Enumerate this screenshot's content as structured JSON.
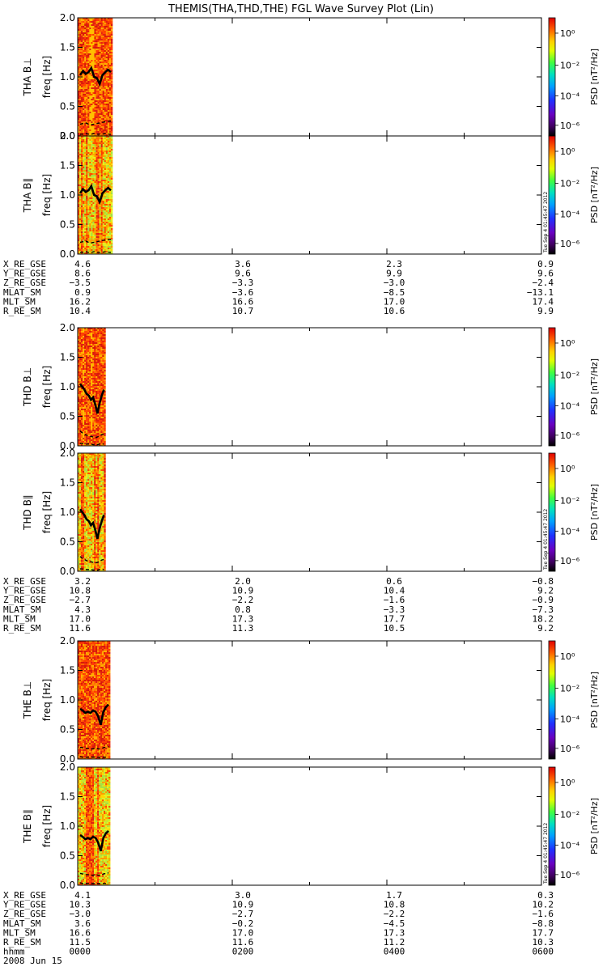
{
  "title": "THEMIS(THA,THD,THE) FGL Wave Survey Plot (Lin)",
  "stamp": "Tue Sep  4 01:45:47 2012",
  "colorbar": {
    "label": "PSD [nT²/Hz]",
    "ticks": [
      "10⁰",
      "10⁻²",
      "10⁻⁴",
      "10⁻⁶"
    ]
  },
  "yticks": [
    "2.0",
    "1.5",
    "1.0",
    "0.5",
    "0.0"
  ],
  "probes": [
    {
      "panels": [
        {
          "label": "THA B⊥",
          "unit": "freq [Hz]"
        },
        {
          "label": "THA B∥",
          "unit": "freq [Hz]"
        }
      ],
      "ephem": [
        {
          "name": "X_RE_GSE",
          "values": [
            "4.6",
            "3.6",
            "2.3",
            "0.9"
          ]
        },
        {
          "name": "Y_RE_GSE",
          "values": [
            "8.6",
            "9.6",
            "9.9",
            "9.6"
          ]
        },
        {
          "name": "Z_RE_GSE",
          "values": [
            "-3.5",
            "-3.3",
            "-3.0",
            "-2.4"
          ]
        },
        {
          "name": "MLAT_SM",
          "values": [
            "0.9",
            "-3.6",
            "-8.5",
            "-13.1"
          ]
        },
        {
          "name": "MLT_SM",
          "values": [
            "16.2",
            "16.6",
            "17.0",
            "17.4"
          ]
        },
        {
          "name": "R_RE_SM",
          "values": [
            "10.4",
            "10.7",
            "10.6",
            "9.9"
          ]
        }
      ]
    },
    {
      "panels": [
        {
          "label": "THD B⊥",
          "unit": "freq [Hz]"
        },
        {
          "label": "THD B∥",
          "unit": "freq [Hz]"
        }
      ],
      "ephem": [
        {
          "name": "X_RE_GSE",
          "values": [
            "3.2",
            "2.0",
            "0.6",
            "-0.8"
          ]
        },
        {
          "name": "Y_RE_GSE",
          "values": [
            "10.8",
            "10.9",
            "10.4",
            "9.2"
          ]
        },
        {
          "name": "Z_RE_GSE",
          "values": [
            "-2.7",
            "-2.2",
            "-1.6",
            "-0.9"
          ]
        },
        {
          "name": "MLAT_SM",
          "values": [
            "4.3",
            "0.8",
            "-3.3",
            "-7.3"
          ]
        },
        {
          "name": "MLT_SM",
          "values": [
            "17.0",
            "17.3",
            "17.7",
            "18.2"
          ]
        },
        {
          "name": "R_RE_SM",
          "values": [
            "11.6",
            "11.3",
            "10.5",
            "9.2"
          ]
        }
      ]
    },
    {
      "panels": [
        {
          "label": "THE B⊥",
          "unit": "freq [Hz]"
        },
        {
          "label": "THE B∥",
          "unit": "freq [Hz]"
        }
      ],
      "ephem": [
        {
          "name": "X_RE_GSE",
          "values": [
            "4.1",
            "3.0",
            "1.7",
            "0.3"
          ]
        },
        {
          "name": "Y_RE_GSE",
          "values": [
            "10.3",
            "10.9",
            "10.8",
            "10.2"
          ]
        },
        {
          "name": "Z_RE_GSE",
          "values": [
            "-3.0",
            "-2.7",
            "-2.2",
            "-1.6"
          ]
        },
        {
          "name": "MLAT_SM",
          "values": [
            "3.6",
            "-0.2",
            "-4.5",
            "-8.8"
          ]
        },
        {
          "name": "MLT_SM",
          "values": [
            "16.6",
            "17.0",
            "17.3",
            "17.7"
          ]
        },
        {
          "name": "R_RE_SM",
          "values": [
            "11.5",
            "11.6",
            "11.2",
            "10.3"
          ]
        },
        {
          "name": "hhmm",
          "values": [
            "0000",
            "0200",
            "0400",
            "0600"
          ]
        }
      ],
      "date": "2008 Jun 15"
    }
  ],
  "chart_data": {
    "type": "heatmap",
    "title": "THEMIS(THA,THD,THE) FGL Wave Survey Plot (Lin)",
    "x_axis": {
      "label": "hhmm",
      "range": [
        "0000",
        "0600"
      ],
      "ticks": [
        "0000",
        "0200",
        "0400",
        "0600"
      ]
    },
    "y_axis": {
      "label": "freq [Hz]",
      "range": [
        0.0,
        2.0
      ],
      "ticks": [
        0.0,
        0.5,
        1.0,
        1.5,
        2.0
      ]
    },
    "color_scale": {
      "label": "PSD [nT²/Hz]",
      "type": "log",
      "range": [
        1e-07,
        10
      ],
      "ticks": [
        1,
        0.01,
        0.0001,
        1e-06
      ]
    },
    "data_coverage_hours": {
      "THA": [
        0.0,
        0.45
      ],
      "THD": [
        0.0,
        0.36
      ],
      "THE": [
        0.0,
        0.42
      ]
    },
    "dominant_color": {
      "B_perp": "red",
      "B_par": "yellow-green/red"
    },
    "traces": {
      "THA": {
        "solid_freq_Hz": [
          1.03,
          1.1,
          1.05,
          1.08,
          1.15,
          1.0,
          0.98,
          0.88,
          1.03,
          1.08,
          1.12,
          1.08
        ],
        "dashed_upper_Hz": [
          0.2,
          0.21,
          0.22,
          0.2,
          0.19,
          0.2,
          0.21,
          0.22,
          0.23,
          0.24,
          0.25,
          0.25
        ],
        "dashed_lower_Hz": [
          0.03,
          0.03,
          0.04,
          0.03,
          0.03,
          0.04,
          0.03,
          0.03,
          0.03,
          0.04,
          0.03,
          0.03
        ]
      },
      "THD": {
        "solid_freq_Hz": [
          1.05,
          1.0,
          0.95,
          0.88,
          0.85,
          0.78,
          0.82,
          0.7,
          0.55,
          0.72,
          0.85,
          0.95
        ],
        "dashed_upper_Hz": [
          0.25,
          0.22,
          0.2,
          0.18,
          0.17,
          0.16,
          0.15,
          0.14,
          0.15,
          0.17,
          0.19,
          0.2
        ],
        "dashed_lower_Hz": [
          0.04,
          0.04,
          0.03,
          0.03,
          0.03,
          0.03,
          0.02,
          0.02,
          0.02,
          0.03,
          0.03,
          0.03
        ]
      },
      "THE": {
        "solid_freq_Hz": [
          0.85,
          0.82,
          0.78,
          0.8,
          0.78,
          0.82,
          0.8,
          0.72,
          0.58,
          0.8,
          0.88,
          0.92
        ],
        "dashed_upper_Hz": [
          0.2,
          0.19,
          0.18,
          0.18,
          0.17,
          0.17,
          0.18,
          0.17,
          0.17,
          0.19,
          0.2,
          0.21
        ],
        "dashed_lower_Hz": [
          0.04,
          0.03,
          0.03,
          0.03,
          0.03,
          0.03,
          0.03,
          0.03,
          0.03,
          0.03,
          0.03,
          0.03
        ]
      }
    }
  }
}
